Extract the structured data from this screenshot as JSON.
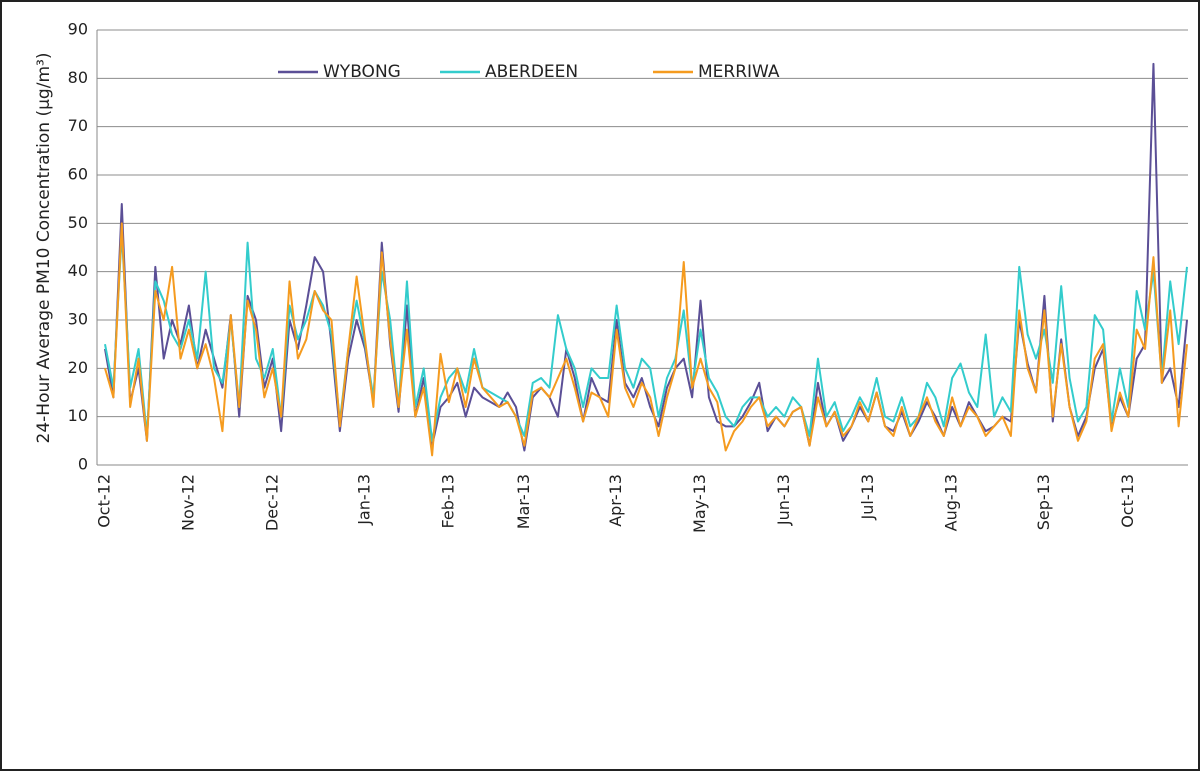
{
  "chart_data": {
    "type": "line",
    "y_label": "24-Hour Average PM10 Concentration (µg/m³)",
    "categories": [
      "Oct-12",
      null,
      null,
      null,
      null,
      null,
      null,
      null,
      null,
      null,
      "Nov-12",
      null,
      null,
      null,
      null,
      null,
      null,
      null,
      null,
      null,
      "Dec-12",
      null,
      null,
      null,
      null,
      null,
      null,
      null,
      null,
      null,
      null,
      "Jan-13",
      null,
      null,
      null,
      null,
      null,
      null,
      null,
      null,
      null,
      "Feb-13",
      null,
      null,
      null,
      null,
      null,
      null,
      null,
      null,
      "Mar-13",
      null,
      null,
      null,
      null,
      null,
      null,
      null,
      null,
      null,
      null,
      "Apr-13",
      null,
      null,
      null,
      null,
      null,
      null,
      null,
      null,
      null,
      "May-13",
      null,
      null,
      null,
      null,
      null,
      null,
      null,
      null,
      null,
      "Jun-13",
      null,
      null,
      null,
      null,
      null,
      null,
      null,
      null,
      null,
      "Jul-13",
      null,
      null,
      null,
      null,
      null,
      null,
      null,
      null,
      null,
      "Aug-13",
      null,
      null,
      null,
      null,
      null,
      null,
      null,
      null,
      null,
      null,
      "Sep-13",
      null,
      null,
      null,
      null,
      null,
      null,
      null,
      null,
      null,
      "Oct-13",
      null,
      null,
      null,
      null,
      null,
      null,
      null
    ],
    "series": [
      {
        "name": "WYBONG",
        "color": "#5b4f96",
        "values": [
          24,
          14,
          54,
          13,
          20,
          5,
          41,
          22,
          30,
          25,
          33,
          20,
          28,
          22,
          16,
          31,
          10,
          35,
          30,
          16,
          22,
          7,
          30,
          24,
          33,
          43,
          40,
          25,
          7,
          22,
          30,
          24,
          13,
          46,
          25,
          11,
          33,
          10,
          18,
          4,
          12,
          14,
          17,
          10,
          16,
          14,
          13,
          12,
          15,
          12,
          3,
          14,
          16,
          14,
          10,
          24,
          18,
          9,
          18,
          14,
          13,
          30,
          17,
          14,
          18,
          12,
          8,
          16,
          20,
          22,
          14,
          34,
          14,
          9,
          8,
          8,
          10,
          13,
          17,
          7,
          10,
          8,
          11,
          12,
          4,
          17,
          8,
          11,
          5,
          8,
          12,
          9,
          15,
          8,
          7,
          11,
          6,
          9,
          13,
          10,
          6,
          12,
          8,
          13,
          10,
          7,
          8,
          10,
          9,
          30,
          21,
          15,
          35,
          9,
          26,
          12,
          6,
          10,
          20,
          24,
          8,
          14,
          10,
          22,
          25,
          83,
          17,
          20,
          12,
          30
        ]
      },
      {
        "name": "ABERDEEN",
        "color": "#33cccc",
        "values": [
          25,
          16,
          48,
          16,
          24,
          6,
          38,
          34,
          27,
          24,
          30,
          22,
          40,
          20,
          17,
          30,
          12,
          46,
          22,
          18,
          24,
          10,
          33,
          26,
          30,
          36,
          33,
          27,
          9,
          24,
          34,
          25,
          14,
          40,
          30,
          12,
          38,
          12,
          20,
          5,
          14,
          18,
          20,
          15,
          24,
          16,
          15,
          14,
          13,
          10,
          6,
          17,
          18,
          16,
          31,
          24,
          20,
          12,
          20,
          18,
          18,
          33,
          20,
          16,
          22,
          20,
          10,
          18,
          22,
          32,
          16,
          28,
          18,
          15,
          10,
          8,
          12,
          14,
          14,
          10,
          12,
          10,
          14,
          12,
          6,
          22,
          10,
          13,
          7,
          10,
          14,
          11,
          18,
          10,
          9,
          14,
          8,
          10,
          17,
          14,
          8,
          18,
          21,
          15,
          12,
          27,
          10,
          14,
          11,
          41,
          27,
          22,
          28,
          17,
          37,
          18,
          9,
          12,
          31,
          28,
          9,
          20,
          12,
          36,
          28,
          40,
          18,
          38,
          25,
          41
        ]
      },
      {
        "name": "MERRIWA",
        "color": "#f59b1f",
        "values": [
          20,
          14,
          50,
          12,
          22,
          5,
          36,
          30,
          41,
          22,
          28,
          20,
          25,
          18,
          7,
          31,
          12,
          34,
          28,
          14,
          20,
          10,
          38,
          22,
          26,
          36,
          32,
          30,
          8,
          24,
          39,
          26,
          12,
          44,
          26,
          12,
          28,
          10,
          16,
          2,
          23,
          13,
          20,
          12,
          22,
          16,
          14,
          12,
          13,
          10,
          4,
          15,
          16,
          14,
          18,
          22,
          16,
          9,
          15,
          14,
          10,
          28,
          16,
          12,
          17,
          14,
          6,
          14,
          20,
          42,
          16,
          22,
          16,
          13,
          3,
          7,
          9,
          12,
          14,
          8,
          10,
          8,
          11,
          12,
          4,
          14,
          8,
          11,
          6,
          8,
          13,
          9,
          15,
          8,
          6,
          12,
          6,
          10,
          14,
          9,
          6,
          14,
          8,
          12,
          10,
          6,
          8,
          10,
          6,
          32,
          20,
          15,
          32,
          10,
          25,
          12,
          5,
          9,
          22,
          25,
          7,
          15,
          10,
          28,
          24,
          43,
          17,
          32,
          8,
          25
        ]
      }
    ],
    "ylim": [
      0,
      90
    ],
    "yticks": [
      0,
      10,
      20,
      30,
      40,
      50,
      60,
      70,
      80,
      90
    ],
    "grid": true
  }
}
